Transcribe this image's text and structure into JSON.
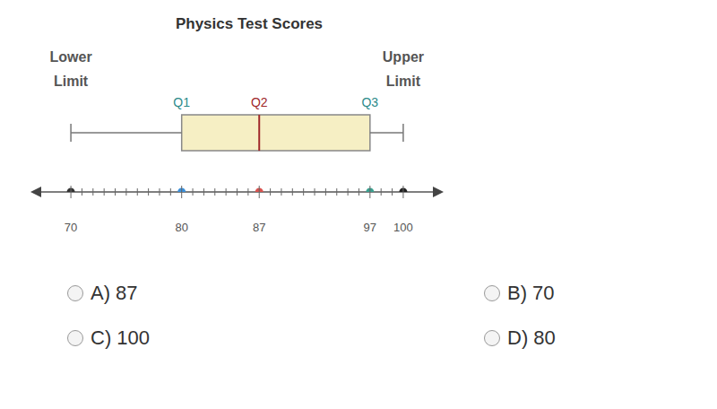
{
  "chart_data": {
    "type": "box",
    "title": "Physics Test Scores",
    "limits": [
      {
        "label": "Lower Limit",
        "value": 70
      },
      {
        "label": "Upper Limit",
        "value": 100
      }
    ],
    "quartiles": [
      {
        "label": "Q1",
        "value": 80,
        "color": "#2b8a8a"
      },
      {
        "label": "Q2",
        "value": 87,
        "color": "#a0282a"
      },
      {
        "label": "Q3",
        "value": 97,
        "color": "#2b8a8a"
      }
    ],
    "color": "#f6efc4",
    "xlim": [
      67,
      103
    ],
    "xticks": [
      70,
      80,
      87,
      97,
      100
    ],
    "tick_labels": "x",
    "points": {
      "values": [
        70,
        80,
        87,
        97,
        100
      ],
      "colors": [
        "#333333",
        "#3b8fd9",
        "#d9534f",
        "#3aa08f",
        "#222222"
      ]
    }
  },
  "options": [
    {
      "letter": "A)",
      "text": "87"
    },
    {
      "letter": "B)",
      "text": "70"
    },
    {
      "letter": "C)",
      "text": "100"
    },
    {
      "letter": "D)",
      "text": "80"
    }
  ]
}
